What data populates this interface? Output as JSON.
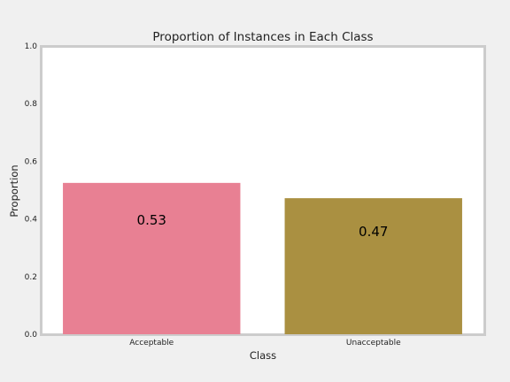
{
  "chart_data": {
    "type": "bar",
    "title": "Proportion of Instances in Each Class",
    "xlabel": "Class",
    "ylabel": "Proportion",
    "categories": [
      "Acceptable",
      "Unacceptable"
    ],
    "values": [
      0.525,
      0.472
    ],
    "data_labels": [
      "0.53",
      "0.47"
    ],
    "colors": [
      "#e88093",
      "#aa9041"
    ],
    "ylim": [
      0,
      1
    ],
    "yticks": [
      "0.0",
      "0.2",
      "0.4",
      "0.6",
      "0.8",
      "1.0"
    ],
    "grid": false,
    "legend": "none"
  }
}
